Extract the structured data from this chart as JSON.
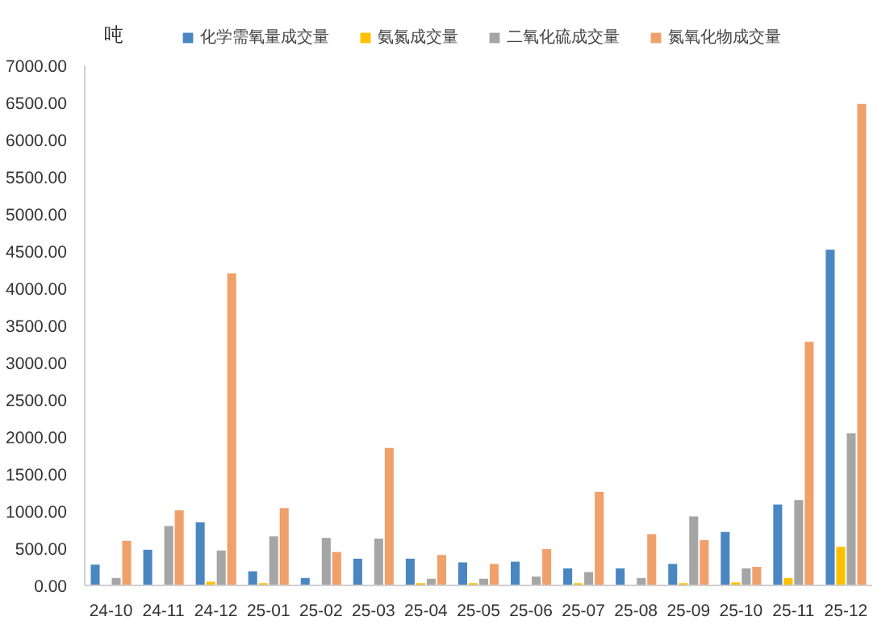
{
  "chart_data": {
    "type": "bar",
    "ylabel": "吨",
    "categories": [
      "24-10",
      "24-11",
      "24-12",
      "25-01",
      "25-02",
      "25-03",
      "25-04",
      "25-05",
      "25-06",
      "25-07",
      "25-08",
      "25-09",
      "25-10",
      "25-11",
      "25-12"
    ],
    "series": [
      {
        "name": "化学需氧量成交量",
        "color": "#4a86c1",
        "values": [
          280,
          480,
          850,
          190,
          100,
          360,
          360,
          310,
          320,
          230,
          230,
          290,
          720,
          1090,
          4520
        ]
      },
      {
        "name": "氨氮成交量",
        "color": "#ffc000",
        "values": [
          10,
          10,
          50,
          30,
          0,
          0,
          30,
          30,
          0,
          30,
          0,
          30,
          40,
          100,
          520
        ]
      },
      {
        "name": "二氧化硫成交量",
        "color": "#a5a5a5",
        "values": [
          100,
          800,
          470,
          660,
          640,
          630,
          90,
          90,
          120,
          180,
          100,
          930,
          230,
          1150,
          2050
        ]
      },
      {
        "name": "氮氧化物成交量",
        "color": "#f0a06a",
        "values": [
          600,
          1010,
          4200,
          1040,
          450,
          1850,
          410,
          290,
          490,
          1260,
          690,
          610,
          250,
          3280,
          6480
        ]
      }
    ],
    "ylim": [
      0,
      7000
    ],
    "yticks": [
      {
        "value": 0,
        "label": "0.00"
      },
      {
        "value": 500,
        "label": "500.00"
      },
      {
        "value": 1000,
        "label": "1000.00"
      },
      {
        "value": 1500,
        "label": "1500.00"
      },
      {
        "value": 2000,
        "label": "2000.00"
      },
      {
        "value": 2500,
        "label": "2500.00"
      },
      {
        "value": 3000,
        "label": "3000.00"
      },
      {
        "value": 3500,
        "label": "3500.00"
      },
      {
        "value": 4000,
        "label": "4000.00"
      },
      {
        "value": 4500,
        "label": "4500.00"
      },
      {
        "value": 5000,
        "label": "5000.00"
      },
      {
        "value": 5500,
        "label": "5500.00"
      },
      {
        "value": 6000,
        "label": "6000.00"
      },
      {
        "value": 6500,
        "label": "6500.00"
      },
      {
        "value": 7000,
        "label": "7000.00"
      }
    ],
    "grid": false,
    "legend": "top"
  }
}
